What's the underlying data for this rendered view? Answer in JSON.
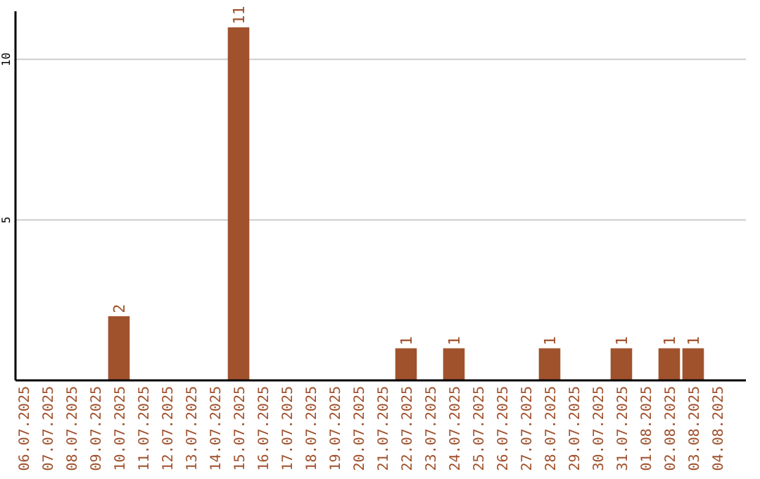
{
  "chart_data": {
    "type": "bar",
    "categories": [
      "06.07.2025",
      "07.07.2025",
      "08.07.2025",
      "09.07.2025",
      "10.07.2025",
      "11.07.2025",
      "12.07.2025",
      "13.07.2025",
      "14.07.2025",
      "15.07.2025",
      "16.07.2025",
      "17.07.2025",
      "18.07.2025",
      "19.07.2025",
      "20.07.2025",
      "21.07.2025",
      "22.07.2025",
      "23.07.2025",
      "24.07.2025",
      "25.07.2025",
      "26.07.2025",
      "27.07.2025",
      "28.07.2025",
      "29.07.2025",
      "30.07.2025",
      "31.07.2025",
      "01.08.2025",
      "02.08.2025",
      "03.08.2025",
      "04.08.2025"
    ],
    "values": [
      0,
      0,
      0,
      0,
      2,
      0,
      0,
      0,
      0,
      11,
      0,
      0,
      0,
      0,
      0,
      0,
      1,
      0,
      1,
      0,
      0,
      0,
      1,
      0,
      0,
      1,
      0,
      1,
      1,
      0
    ],
    "value_labels": [
      null,
      null,
      null,
      null,
      "2",
      null,
      null,
      null,
      null,
      "11",
      null,
      null,
      null,
      null,
      null,
      null,
      "1",
      null,
      "1",
      null,
      null,
      null,
      "1",
      null,
      null,
      "1",
      null,
      "1",
      "1",
      null
    ],
    "color": "#a0522d",
    "ylim": [
      0,
      11.5
    ],
    "yticks": [
      5,
      10
    ],
    "grid": "y"
  }
}
